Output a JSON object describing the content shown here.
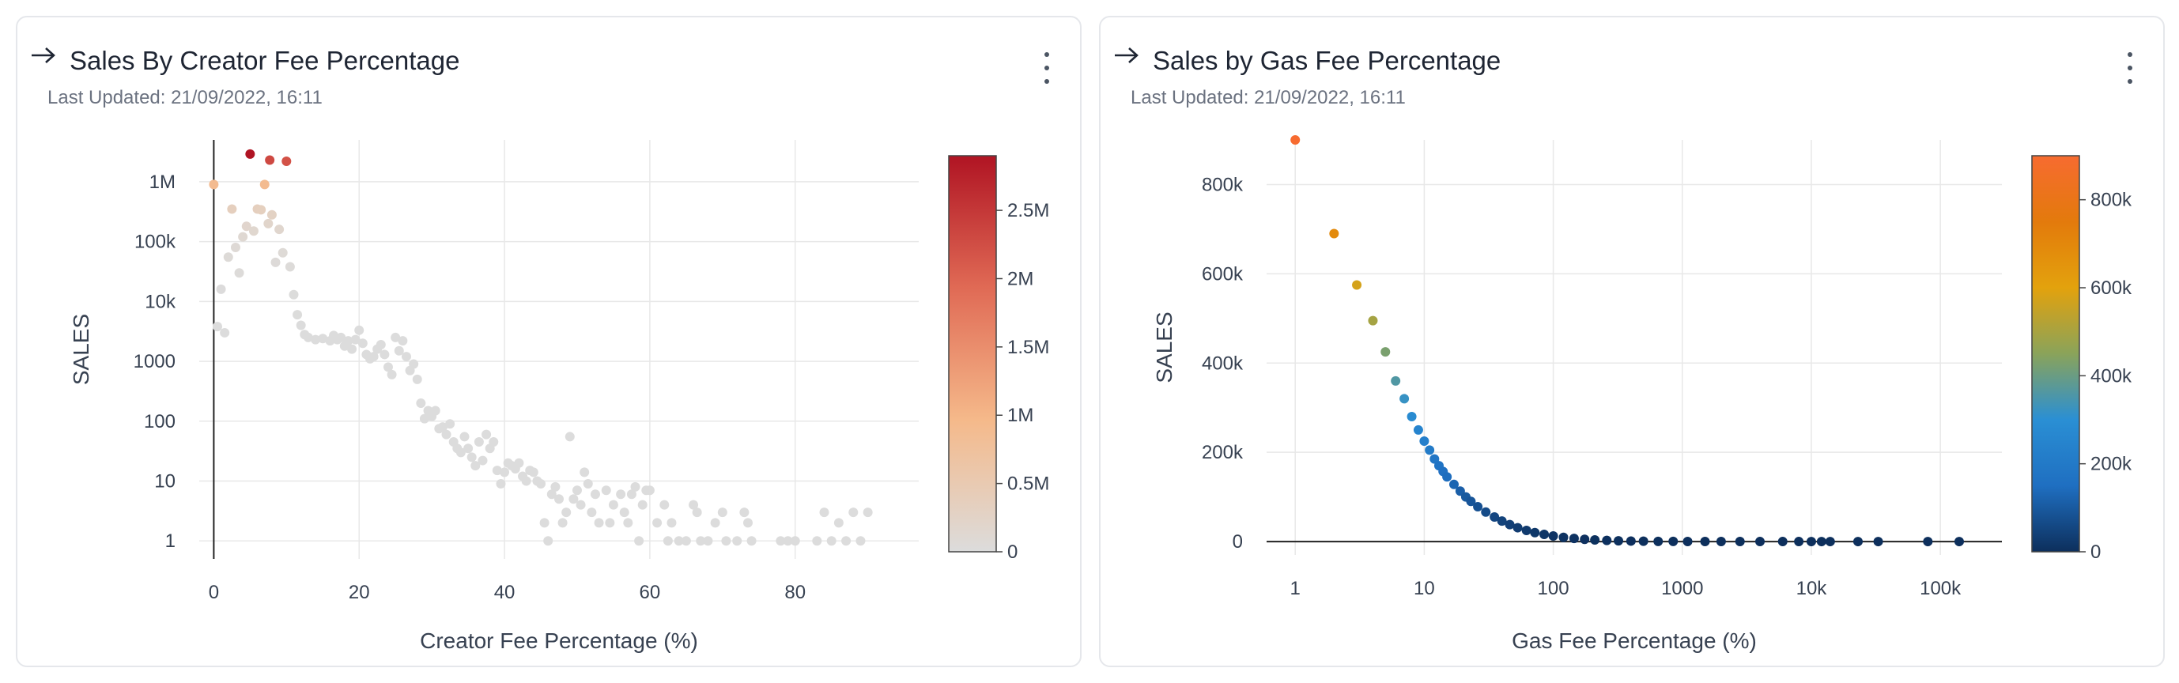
{
  "cards": [
    {
      "title": "Sales By Creator Fee Percentage",
      "subtitle": "Last Updated: 21/09/2022, 16:11",
      "chart_data": {
        "type": "scatter",
        "title": "Sales By Creator Fee Percentage",
        "xlabel": "Creator Fee Percentage (%)",
        "ylabel": "SALES",
        "xscale": "linear",
        "yscale": "log",
        "xlim": [
          -2,
          97
        ],
        "ylim": [
          0.5,
          5000000
        ],
        "x_ticks": [
          0,
          20,
          40,
          60,
          80
        ],
        "x_tick_labels": [
          "0",
          "20",
          "40",
          "60",
          "80"
        ],
        "y_ticks": [
          1,
          10,
          100,
          1000,
          10000,
          100000,
          1000000
        ],
        "y_tick_labels": [
          "1",
          "10",
          "100",
          "1000",
          "10k",
          "100k",
          "1M"
        ],
        "grid": true,
        "colorbar": {
          "range": [
            0,
            2900000
          ],
          "ticks": [
            0,
            500000,
            1000000,
            1500000,
            2000000,
            2500000
          ],
          "tick_labels": [
            "0",
            "0.5M",
            "1M",
            "1.5M",
            "2M",
            "2.5M"
          ],
          "colors": [
            "#dcdcdc",
            "#f5b98a",
            "#e06a55",
            "#b01423"
          ]
        },
        "points": [
          [
            0,
            900000
          ],
          [
            0.5,
            3800
          ],
          [
            1,
            16000
          ],
          [
            1.5,
            3000
          ],
          [
            2,
            55000
          ],
          [
            2.5,
            350000
          ],
          [
            3,
            80000
          ],
          [
            3.5,
            30000
          ],
          [
            4,
            120000
          ],
          [
            4.5,
            180000
          ],
          [
            5,
            2900000
          ],
          [
            5.5,
            150000
          ],
          [
            6,
            350000
          ],
          [
            6.5,
            340000
          ],
          [
            7,
            900000
          ],
          [
            7.5,
            200000
          ],
          [
            7.7,
            2300000
          ],
          [
            8,
            280000
          ],
          [
            8.5,
            45000
          ],
          [
            9,
            160000
          ],
          [
            9.5,
            65000
          ],
          [
            10,
            2200000
          ],
          [
            10.5,
            38000
          ],
          [
            11,
            13000
          ],
          [
            11.5,
            6000
          ],
          [
            12,
            4000
          ],
          [
            12.5,
            2800
          ],
          [
            13,
            2500
          ],
          [
            14,
            2300
          ],
          [
            15,
            2400
          ],
          [
            16,
            2200
          ],
          [
            16.5,
            2700
          ],
          [
            17,
            2300
          ],
          [
            17.5,
            2500
          ],
          [
            18,
            1800
          ],
          [
            18.5,
            2200
          ],
          [
            19,
            1600
          ],
          [
            19.5,
            2300
          ],
          [
            20,
            3300
          ],
          [
            20.5,
            2000
          ],
          [
            21,
            1300
          ],
          [
            21.5,
            1100
          ],
          [
            22,
            1200
          ],
          [
            22.5,
            1600
          ],
          [
            23,
            1900
          ],
          [
            23.5,
            1300
          ],
          [
            24,
            800
          ],
          [
            24.5,
            600
          ],
          [
            25,
            2500
          ],
          [
            25.5,
            1500
          ],
          [
            26,
            2200
          ],
          [
            26.5,
            1200
          ],
          [
            27,
            700
          ],
          [
            27.5,
            900
          ],
          [
            28,
            500
          ],
          [
            28.5,
            200
          ],
          [
            29,
            110
          ],
          [
            29.5,
            150
          ],
          [
            30,
            120
          ],
          [
            30.5,
            150
          ],
          [
            31,
            75
          ],
          [
            31.5,
            80
          ],
          [
            32,
            60
          ],
          [
            32.5,
            90
          ],
          [
            33,
            45
          ],
          [
            33.5,
            35
          ],
          [
            34,
            30
          ],
          [
            34.5,
            55
          ],
          [
            35,
            35
          ],
          [
            35.5,
            25
          ],
          [
            36,
            18
          ],
          [
            36.5,
            45
          ],
          [
            37,
            22
          ],
          [
            37.5,
            60
          ],
          [
            38,
            35
          ],
          [
            38.5,
            45
          ],
          [
            39,
            15
          ],
          [
            39.5,
            9
          ],
          [
            40,
            14
          ],
          [
            40.5,
            20
          ],
          [
            41,
            18
          ],
          [
            41.5,
            16
          ],
          [
            42,
            20
          ],
          [
            42.5,
            12
          ],
          [
            43,
            10
          ],
          [
            43.5,
            15
          ],
          [
            44,
            14
          ],
          [
            44.5,
            10
          ],
          [
            45,
            9
          ],
          [
            45.5,
            2
          ],
          [
            46,
            1
          ],
          [
            46.5,
            6
          ],
          [
            47,
            8
          ],
          [
            47.5,
            5
          ],
          [
            48,
            2
          ],
          [
            48.5,
            3
          ],
          [
            49,
            55
          ],
          [
            49.5,
            5
          ],
          [
            50,
            7
          ],
          [
            50.5,
            4
          ],
          [
            51,
            14
          ],
          [
            51.5,
            9
          ],
          [
            52,
            3
          ],
          [
            52.5,
            6
          ],
          [
            53,
            2
          ],
          [
            54,
            7
          ],
          [
            54.5,
            2
          ],
          [
            55,
            4
          ],
          [
            56,
            6
          ],
          [
            56.5,
            3
          ],
          [
            57,
            2
          ],
          [
            57.5,
            6
          ],
          [
            58,
            8
          ],
          [
            58.5,
            1
          ],
          [
            59,
            4
          ],
          [
            59.5,
            7
          ],
          [
            60,
            7
          ],
          [
            61,
            2
          ],
          [
            62,
            4
          ],
          [
            62.5,
            1
          ],
          [
            63,
            2
          ],
          [
            64,
            1
          ],
          [
            65,
            1
          ],
          [
            66,
            4
          ],
          [
            66.5,
            3
          ],
          [
            67,
            1
          ],
          [
            68,
            1
          ],
          [
            69,
            2
          ],
          [
            70,
            3
          ],
          [
            70.5,
            1
          ],
          [
            72,
            1
          ],
          [
            73,
            3
          ],
          [
            73.5,
            2
          ],
          [
            74,
            1
          ],
          [
            78,
            1
          ],
          [
            79,
            1
          ],
          [
            80,
            1
          ],
          [
            83,
            1
          ],
          [
            84,
            3
          ],
          [
            85,
            1
          ],
          [
            86,
            2
          ],
          [
            87,
            1
          ],
          [
            88,
            3
          ],
          [
            89,
            1
          ],
          [
            90,
            3
          ]
        ]
      }
    },
    {
      "title": "Sales by Gas Fee Percentage",
      "subtitle": "Last Updated: 21/09/2022, 16:11",
      "chart_data": {
        "type": "scatter",
        "title": "Sales by Gas Fee Percentage",
        "xlabel": "Gas Fee Percentage (%)",
        "ylabel": "SALES",
        "xscale": "log",
        "yscale": "linear",
        "xlim": [
          0.6,
          300000
        ],
        "ylim": [
          -30000,
          900000
        ],
        "x_ticks": [
          1,
          10,
          100,
          1000,
          10000,
          100000
        ],
        "x_tick_labels": [
          "1",
          "10",
          "100",
          "1000",
          "10k",
          "100k"
        ],
        "y_ticks": [
          0,
          200000,
          400000,
          600000,
          800000
        ],
        "y_tick_labels": [
          "0",
          "200k",
          "400k",
          "600k",
          "800k"
        ],
        "grid": true,
        "colorbar": {
          "range": [
            0,
            900000
          ],
          "ticks": [
            0,
            200000,
            400000,
            600000,
            800000
          ],
          "tick_labels": [
            "0",
            "200k",
            "400k",
            "600k",
            "800k"
          ],
          "colors": [
            "#0d2f5c",
            "#1f6fc1",
            "#2a8fd4",
            "#8aa35a",
            "#e3a20d",
            "#e37a0c",
            "#f76b30"
          ]
        },
        "model": "sales ≈ 900000 / gas_fee_percentage",
        "points": [
          [
            1,
            900000
          ],
          [
            2,
            690000
          ],
          [
            3,
            575000
          ],
          [
            4,
            495000
          ],
          [
            5,
            425000
          ],
          [
            6,
            360000
          ],
          [
            7,
            320000
          ],
          [
            8,
            280000
          ],
          [
            9,
            250000
          ],
          [
            10,
            225000
          ],
          [
            11,
            205000
          ],
          [
            12,
            185000
          ],
          [
            13,
            170000
          ],
          [
            14,
            157000
          ],
          [
            15,
            145000
          ],
          [
            17,
            128000
          ],
          [
            19,
            113000
          ],
          [
            21,
            100000
          ],
          [
            23,
            90000
          ],
          [
            26,
            78000
          ],
          [
            30,
            66000
          ],
          [
            35,
            55000
          ],
          [
            40,
            46000
          ],
          [
            46,
            38000
          ],
          [
            53,
            31000
          ],
          [
            62,
            25000
          ],
          [
            72,
            20000
          ],
          [
            85,
            16000
          ],
          [
            100,
            12500
          ],
          [
            120,
            9500
          ],
          [
            145,
            7000
          ],
          [
            175,
            5000
          ],
          [
            210,
            3600
          ],
          [
            260,
            2500
          ],
          [
            320,
            1700
          ],
          [
            400,
            1100
          ],
          [
            500,
            700
          ],
          [
            650,
            400
          ],
          [
            850,
            250
          ],
          [
            1100,
            140
          ],
          [
            1500,
            80
          ],
          [
            2000,
            45
          ],
          [
            2800,
            25
          ],
          [
            4000,
            12
          ],
          [
            6000,
            6
          ],
          [
            8000,
            4
          ],
          [
            10000,
            3
          ],
          [
            12000,
            2
          ],
          [
            14000,
            2
          ],
          [
            23000,
            1
          ],
          [
            33000,
            1
          ],
          [
            80000,
            1
          ],
          [
            140000,
            1
          ]
        ]
      }
    }
  ]
}
